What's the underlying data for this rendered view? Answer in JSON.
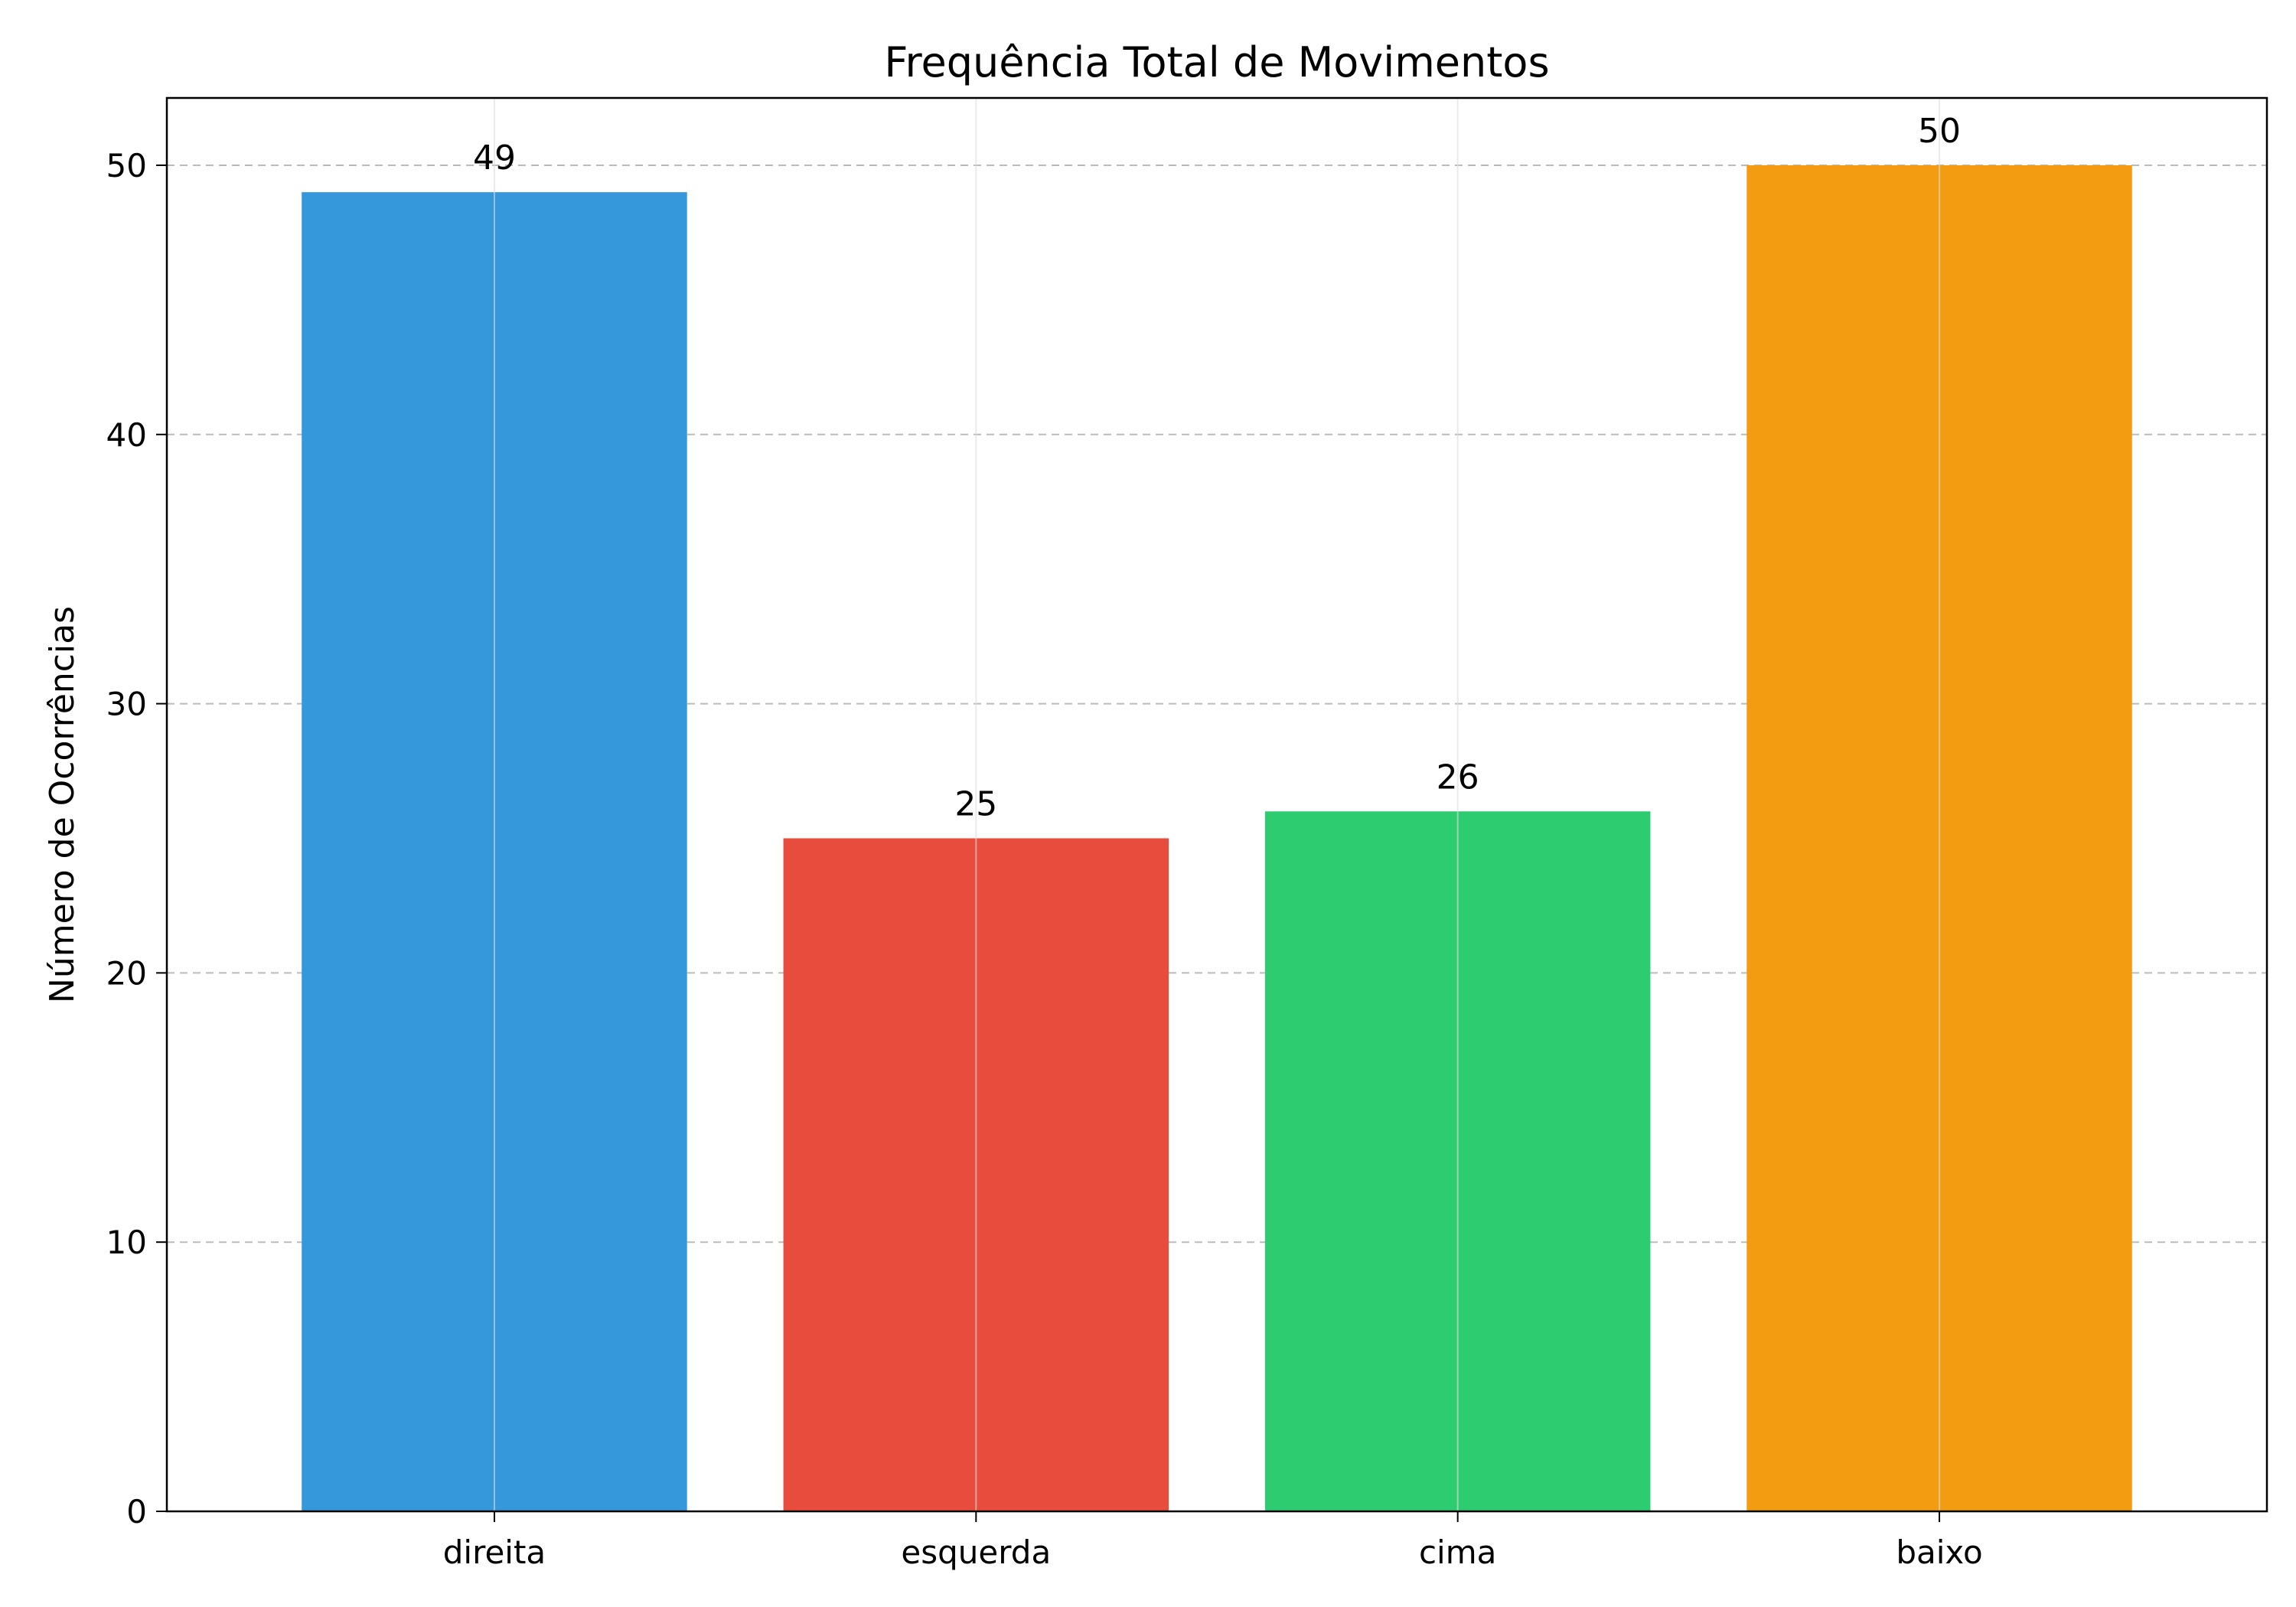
{
  "chart_data": {
    "type": "bar",
    "title": "Frequência Total de Movimentos",
    "xlabel": "",
    "ylabel": "Número de Ocorrências",
    "categories": [
      "direita",
      "esquerda",
      "cima",
      "baixo"
    ],
    "values": [
      49,
      25,
      26,
      50
    ],
    "data_labels": [
      "49",
      "25",
      "26",
      "50"
    ],
    "colors": [
      "#3498db",
      "#e74c3c",
      "#2ecc71",
      "#f39c12"
    ],
    "ylim": [
      0,
      52.5
    ],
    "yticks": [
      0,
      10,
      20,
      30,
      40,
      50
    ],
    "grid": {
      "y": true,
      "x": true,
      "y_style": "dashed"
    },
    "legend": "none"
  }
}
